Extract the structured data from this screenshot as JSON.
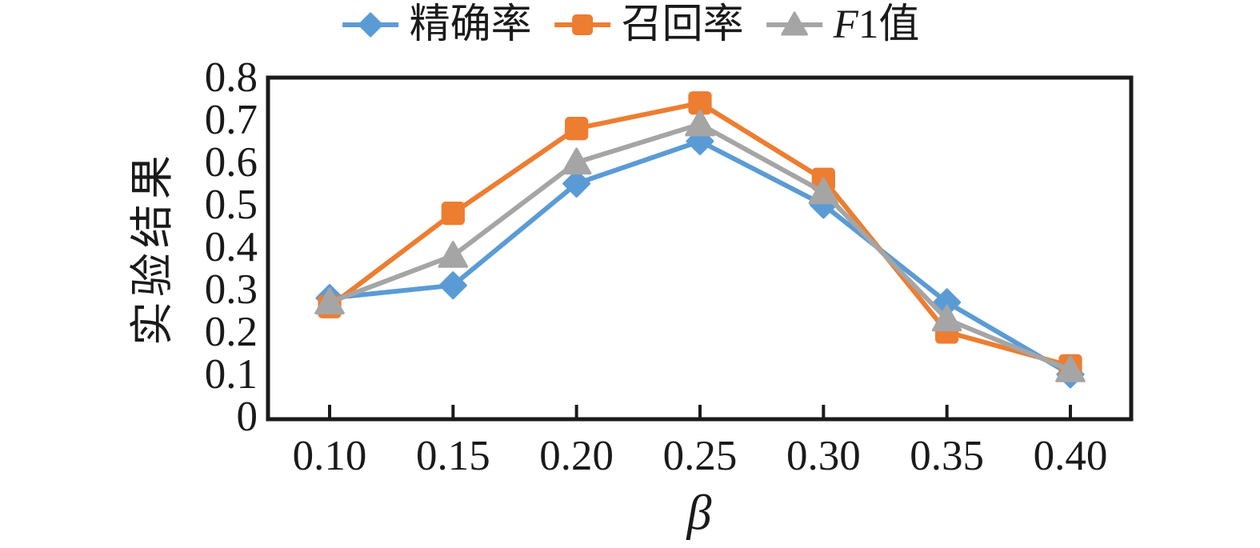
{
  "chart_data": {
    "type": "line",
    "title": "",
    "xlabel": "β",
    "ylabel": "实验结果",
    "x": [
      0.1,
      0.15,
      0.2,
      0.25,
      0.3,
      0.35,
      0.4
    ],
    "x_labels": [
      "0.10",
      "0.15",
      "0.20",
      "0.25",
      "0.30",
      "0.35",
      "0.40"
    ],
    "y_ticks": [
      "0",
      "0.1",
      "0.2",
      "0.3",
      "0.4",
      "0.5",
      "0.6",
      "0.7",
      "0.8"
    ],
    "ylim": [
      0,
      0.8
    ],
    "grid": false,
    "legend_position": "top",
    "axis_color": "#1a1a1a",
    "series": [
      {
        "key": "precision",
        "name": "精确率",
        "marker": "diamond",
        "color": "#5B9BD5",
        "values": [
          0.28,
          0.31,
          0.55,
          0.65,
          0.5,
          0.27,
          0.1
        ]
      },
      {
        "key": "recall",
        "name": "召回率",
        "marker": "square",
        "color": "#ED7D31",
        "values": [
          0.26,
          0.48,
          0.68,
          0.74,
          0.56,
          0.2,
          0.12
        ]
      },
      {
        "key": "f1",
        "name": "F1值",
        "name_italic": "F",
        "name_regular": "1值",
        "marker": "triangle",
        "color": "#A5A5A5",
        "values": [
          0.27,
          0.38,
          0.6,
          0.69,
          0.53,
          0.23,
          0.11
        ]
      }
    ]
  }
}
